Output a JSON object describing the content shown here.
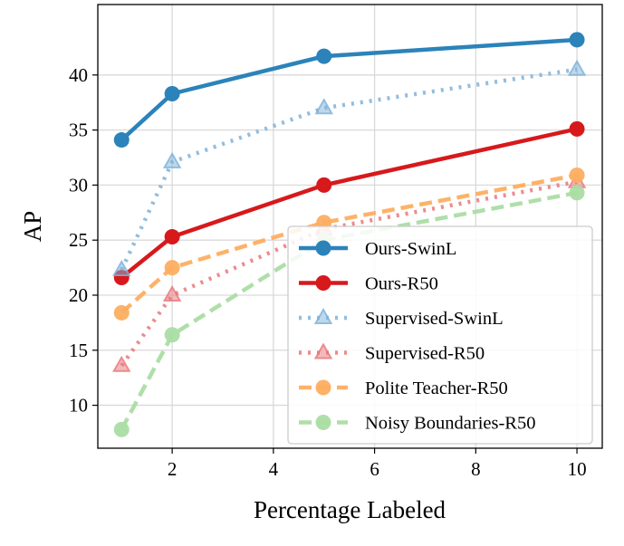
{
  "chart_data": {
    "type": "line",
    "title": "",
    "xlabel": "Percentage Labeled",
    "ylabel": "AP",
    "xlim": [
      0.53,
      10.5
    ],
    "ylim": [
      6.1,
      46.4
    ],
    "xticks": [
      2,
      4,
      6,
      8,
      10
    ],
    "yticks": [
      10,
      15,
      20,
      25,
      30,
      35,
      40
    ],
    "grid": true,
    "legend_placement": "lower-right",
    "series": [
      {
        "name": "Ours-SwinL",
        "color": "#2b83ba",
        "style": "solid",
        "marker": "circle",
        "x": [
          1,
          2,
          5,
          10
        ],
        "y": [
          34.1,
          38.3,
          41.7,
          43.2
        ]
      },
      {
        "name": "Ours-R50",
        "color": "#d7191c",
        "style": "solid",
        "marker": "circle",
        "x": [
          1,
          2,
          5,
          10
        ],
        "y": [
          21.6,
          25.3,
          30.0,
          35.1
        ]
      },
      {
        "name": "Supervised-SwinL",
        "color": "#7fb2d8",
        "style": "dotted",
        "marker": "triangle",
        "x": [
          1,
          2,
          5,
          10
        ],
        "y": [
          22.3,
          32.1,
          37.0,
          40.5
        ]
      },
      {
        "name": "Supervised-R50",
        "color": "#e8777a",
        "style": "dotted",
        "marker": "triangle",
        "x": [
          1,
          2,
          5,
          10
        ],
        "y": [
          13.6,
          20.0,
          26.0,
          30.3
        ]
      },
      {
        "name": "Polite Teacher-R50",
        "color": "#fdae61",
        "style": "dashed",
        "marker": "circle",
        "x": [
          1,
          2,
          5,
          10
        ],
        "y": [
          18.4,
          22.5,
          26.6,
          30.9
        ]
      },
      {
        "name": "Noisy Boundaries-R50",
        "color": "#abdda4",
        "style": "dashed",
        "marker": "circle",
        "x": [
          1,
          2,
          5,
          10
        ],
        "y": [
          7.8,
          16.4,
          25.0,
          29.3
        ]
      }
    ]
  }
}
